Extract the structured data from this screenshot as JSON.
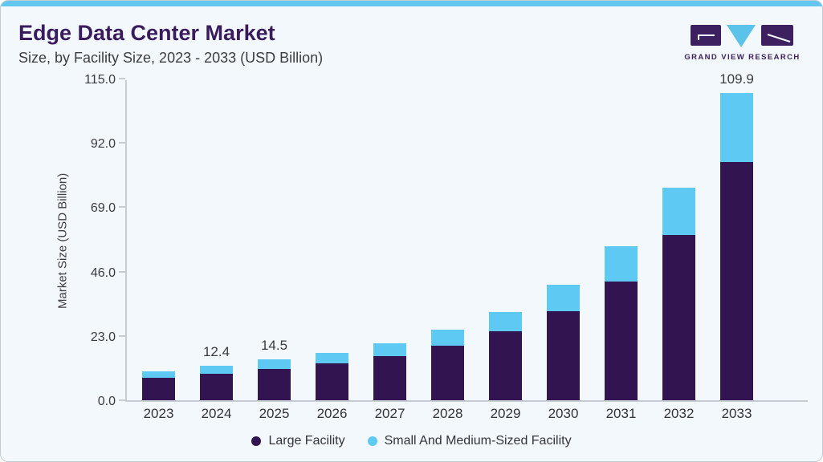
{
  "page": {
    "title": "Edge Data Center Market",
    "subtitle": "Size, by Facility Size, 2023 - 2033 (USD Billion)"
  },
  "logo": {
    "text": "GRAND VIEW RESEARCH"
  },
  "colors": {
    "accent_bar": "#63c6ee",
    "card_background": "#f3f8fc",
    "title_text": "#3a1c5e",
    "body_text": "#3c3d42",
    "axis_line": "#c6ccd3",
    "large_facility": "#321450",
    "small_facility": "#5ec9f3"
  },
  "chart_data": {
    "type": "bar",
    "stacked": true,
    "title": "Edge Data Center Market Size, by Facility Size, 2023 - 2033 (USD Billion)",
    "categories": [
      "2023",
      "2024",
      "2025",
      "2026",
      "2027",
      "2028",
      "2029",
      "2030",
      "2031",
      "2032",
      "2033"
    ],
    "series": [
      {
        "name": "Large Facility",
        "color": "#321450",
        "values": [
          8.0,
          9.6,
          11.2,
          13.2,
          15.9,
          19.6,
          24.6,
          31.9,
          42.6,
          59.0,
          85.1
        ]
      },
      {
        "name": "Small And Medium-Sized Facility",
        "color": "#5ec9f3",
        "values": [
          2.4,
          2.8,
          3.3,
          3.6,
          4.6,
          5.6,
          7.0,
          9.3,
          12.6,
          17.1,
          24.8
        ]
      }
    ],
    "totals": [
      10.4,
      12.4,
      14.5,
      16.8,
      20.5,
      25.2,
      31.6,
      41.2,
      55.2,
      76.1,
      109.9
    ],
    "total_labels": [
      "",
      "12.4",
      "14.5",
      "",
      "",
      "",
      "",
      "",
      "",
      "",
      "109.9"
    ],
    "xlabel": "",
    "ylabel": "Market Size (USD Billion)",
    "ylim": [
      0,
      115
    ],
    "yticks": [
      0,
      23,
      46,
      69,
      92,
      115
    ],
    "ytick_labels": [
      "0.0",
      "23.0",
      "46.0",
      "69.0",
      "92.0",
      "115.0"
    ],
    "grid": false,
    "legend_position": "bottom"
  },
  "legend": {
    "items": [
      {
        "label": "Large Facility",
        "color": "#321450"
      },
      {
        "label": "Small And Medium-Sized Facility",
        "color": "#5ec9f3"
      }
    ]
  }
}
